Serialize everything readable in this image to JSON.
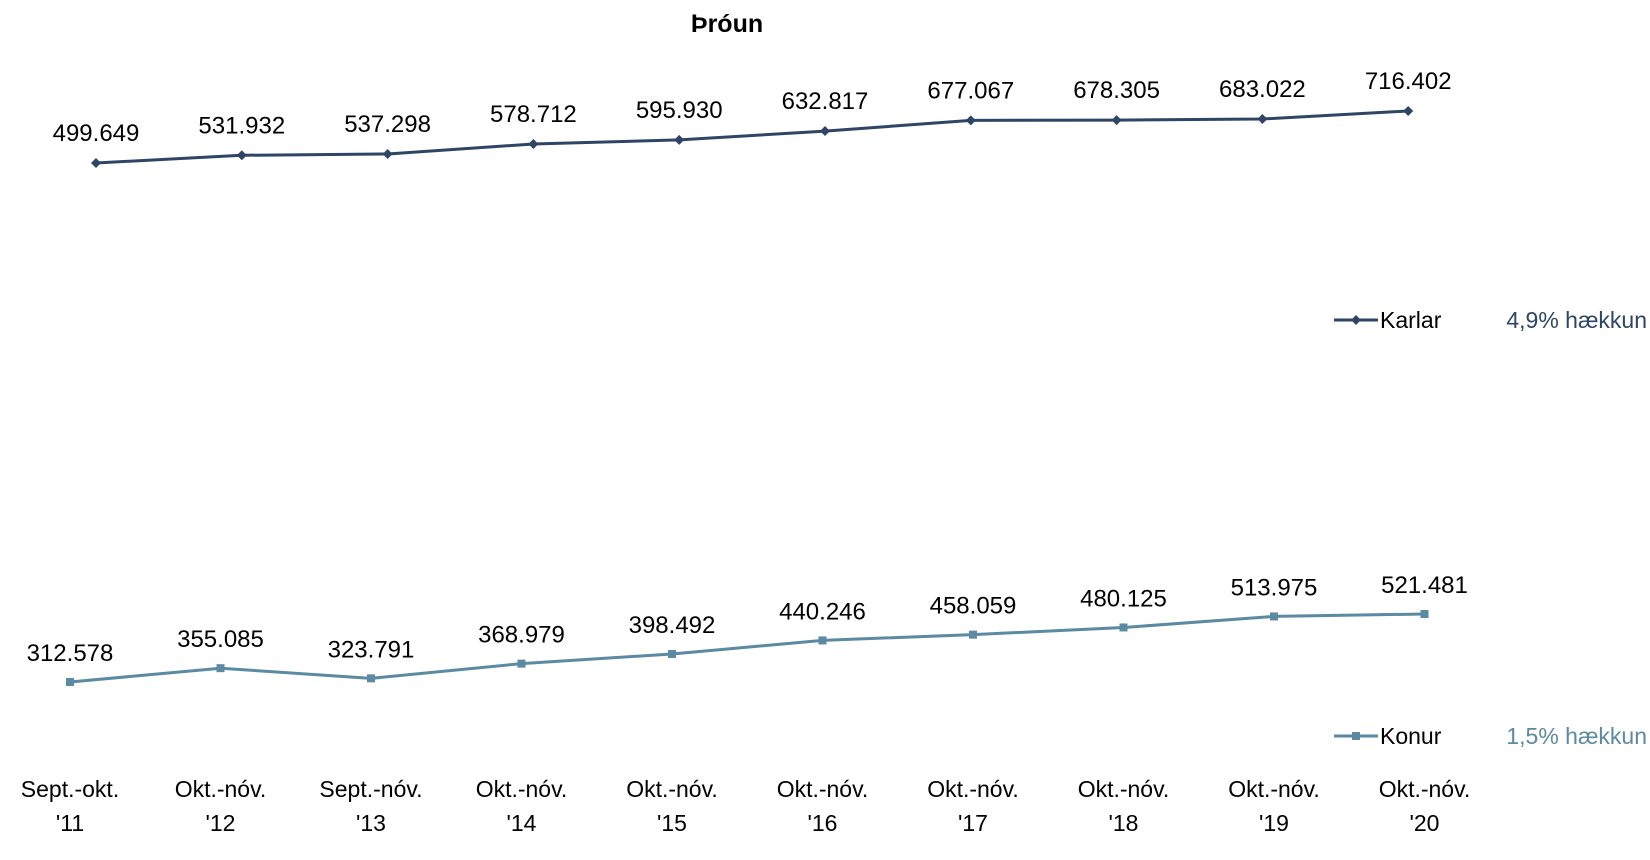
{
  "chart_data": {
    "type": "line",
    "title": "Þróun",
    "xlabel": "",
    "ylabel": "",
    "categories": [
      [
        "Sept.-okt.",
        "'11"
      ],
      [
        "Okt.-nóv.",
        "'12"
      ],
      [
        "Sept.-nóv.",
        "'13"
      ],
      [
        "Okt.-nóv.",
        "'14"
      ],
      [
        "Okt.-nóv.",
        "'15"
      ],
      [
        "Okt.-nóv.",
        "'16"
      ],
      [
        "Okt.-nóv.",
        "'17"
      ],
      [
        "Okt.-nóv.",
        "'18"
      ],
      [
        "Okt.-nóv.",
        "'19"
      ],
      [
        "Okt.-nóv.",
        "'20"
      ]
    ],
    "series": [
      {
        "name": "Karlar",
        "note": "4,9% hækkun",
        "color": "#2e4566",
        "marker": "diamond",
        "values": [
          499649,
          531932,
          537298,
          578712,
          595930,
          632817,
          677067,
          678305,
          683022,
          716402
        ],
        "labels": [
          "499.649",
          "531.932",
          "537.298",
          "578.712",
          "595.930",
          "632.817",
          "677.067",
          "678.305",
          "683.022",
          "716.402"
        ]
      },
      {
        "name": "Konur",
        "note": "1,5% hækkun",
        "color": "#5b8aa2",
        "marker": "square",
        "values": [
          312578,
          355085,
          323791,
          368979,
          398492,
          440246,
          458059,
          480125,
          513975,
          521481
        ],
        "labels": [
          "312.578",
          "355.085",
          "323.791",
          "368.979",
          "398.492",
          "440.246",
          "458.059",
          "480.125",
          "513.975",
          "521.481"
        ]
      }
    ],
    "grid": false,
    "legend_position": "right"
  }
}
